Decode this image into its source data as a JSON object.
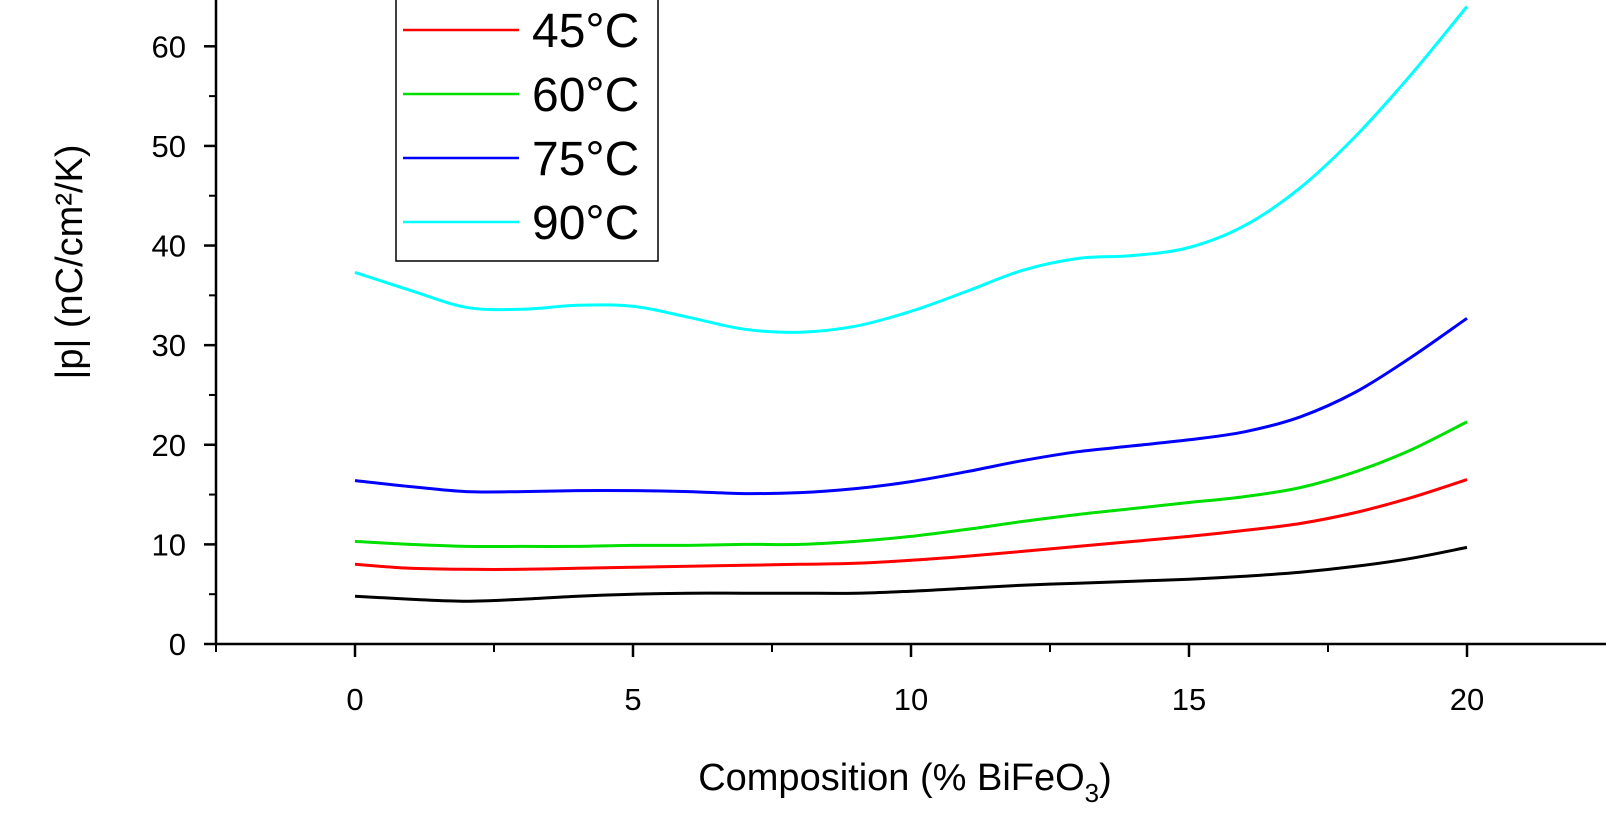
{
  "chart_data": {
    "type": "line",
    "xlabel": "Composition (% BiFeO",
    "xlabel_sub": "3",
    "xlabel_tail": ")",
    "ylabel": "|p| (nC/cm²/K)",
    "xlim": [
      -2.5,
      22.5
    ],
    "ylim": [
      0,
      65
    ],
    "x_ticks": [
      0,
      5,
      10,
      15,
      20
    ],
    "x_tick_labels": [
      "0",
      "5",
      "10",
      "15",
      "20"
    ],
    "x_minor_ticks": [
      -2.5,
      2.5,
      7.5,
      12.5,
      17.5
    ],
    "y_ticks": [
      0,
      10,
      20,
      30,
      40,
      50,
      60
    ],
    "y_tick_labels": [
      "0",
      "10",
      "20",
      "30",
      "40",
      "50",
      "60"
    ],
    "y_minor_ticks": [
      5,
      15,
      25,
      35,
      45,
      55
    ],
    "grid": false,
    "legend_position": "top-left",
    "series": [
      {
        "name": "",
        "color": "#000000",
        "in_legend": false,
        "points": [
          [
            0,
            4.8
          ],
          [
            1,
            4.5
          ],
          [
            2,
            4.3
          ],
          [
            3,
            4.5
          ],
          [
            4,
            4.8
          ],
          [
            5,
            5.0
          ],
          [
            6,
            5.1
          ],
          [
            7,
            5.1
          ],
          [
            8,
            5.1
          ],
          [
            9,
            5.1
          ],
          [
            10,
            5.3
          ],
          [
            11,
            5.6
          ],
          [
            12,
            5.9
          ],
          [
            13,
            6.1
          ],
          [
            14,
            6.3
          ],
          [
            15,
            6.5
          ],
          [
            16,
            6.8
          ],
          [
            17,
            7.2
          ],
          [
            18,
            7.8
          ],
          [
            19,
            8.6
          ],
          [
            20,
            9.7
          ]
        ]
      },
      {
        "name": "45°C",
        "color": "#ff0000",
        "in_legend": true,
        "points": [
          [
            0,
            8.0
          ],
          [
            1,
            7.6
          ],
          [
            2,
            7.5
          ],
          [
            3,
            7.5
          ],
          [
            4,
            7.6
          ],
          [
            5,
            7.7
          ],
          [
            6,
            7.8
          ],
          [
            7,
            7.9
          ],
          [
            8,
            8.0
          ],
          [
            9,
            8.1
          ],
          [
            10,
            8.4
          ],
          [
            11,
            8.8
          ],
          [
            12,
            9.3
          ],
          [
            13,
            9.8
          ],
          [
            14,
            10.3
          ],
          [
            15,
            10.8
          ],
          [
            16,
            11.4
          ],
          [
            17,
            12.1
          ],
          [
            18,
            13.2
          ],
          [
            19,
            14.7
          ],
          [
            20,
            16.5
          ]
        ]
      },
      {
        "name": "60°C",
        "color": "#00e000",
        "in_legend": true,
        "points": [
          [
            0,
            10.3
          ],
          [
            1,
            10.0
          ],
          [
            2,
            9.8
          ],
          [
            3,
            9.8
          ],
          [
            4,
            9.8
          ],
          [
            5,
            9.9
          ],
          [
            6,
            9.9
          ],
          [
            7,
            10.0
          ],
          [
            8,
            10.0
          ],
          [
            9,
            10.3
          ],
          [
            10,
            10.8
          ],
          [
            11,
            11.5
          ],
          [
            12,
            12.3
          ],
          [
            13,
            13.0
          ],
          [
            14,
            13.6
          ],
          [
            15,
            14.2
          ],
          [
            16,
            14.8
          ],
          [
            17,
            15.7
          ],
          [
            18,
            17.3
          ],
          [
            19,
            19.5
          ],
          [
            20,
            22.3
          ]
        ]
      },
      {
        "name": "75°C",
        "color": "#0000ff",
        "in_legend": true,
        "points": [
          [
            0,
            16.4
          ],
          [
            1,
            15.8
          ],
          [
            2,
            15.3
          ],
          [
            3,
            15.3
          ],
          [
            4,
            15.4
          ],
          [
            5,
            15.4
          ],
          [
            6,
            15.3
          ],
          [
            7,
            15.1
          ],
          [
            8,
            15.2
          ],
          [
            9,
            15.6
          ],
          [
            10,
            16.3
          ],
          [
            11,
            17.3
          ],
          [
            12,
            18.4
          ],
          [
            13,
            19.3
          ],
          [
            14,
            19.9
          ],
          [
            15,
            20.5
          ],
          [
            16,
            21.3
          ],
          [
            17,
            22.8
          ],
          [
            18,
            25.3
          ],
          [
            19,
            28.8
          ],
          [
            20,
            32.7
          ]
        ]
      },
      {
        "name": "90°C",
        "color": "#00ffff",
        "in_legend": true,
        "points": [
          [
            0,
            37.3
          ],
          [
            1,
            35.5
          ],
          [
            2,
            33.8
          ],
          [
            3,
            33.6
          ],
          [
            4,
            34.0
          ],
          [
            5,
            33.9
          ],
          [
            6,
            32.8
          ],
          [
            7,
            31.6
          ],
          [
            8,
            31.3
          ],
          [
            9,
            31.9
          ],
          [
            10,
            33.4
          ],
          [
            11,
            35.4
          ],
          [
            12,
            37.5
          ],
          [
            13,
            38.7
          ],
          [
            14,
            39.0
          ],
          [
            15,
            39.8
          ],
          [
            16,
            42.0
          ],
          [
            17,
            45.8
          ],
          [
            18,
            51.0
          ],
          [
            19,
            57.2
          ],
          [
            20,
            64.0
          ]
        ]
      }
    ]
  }
}
